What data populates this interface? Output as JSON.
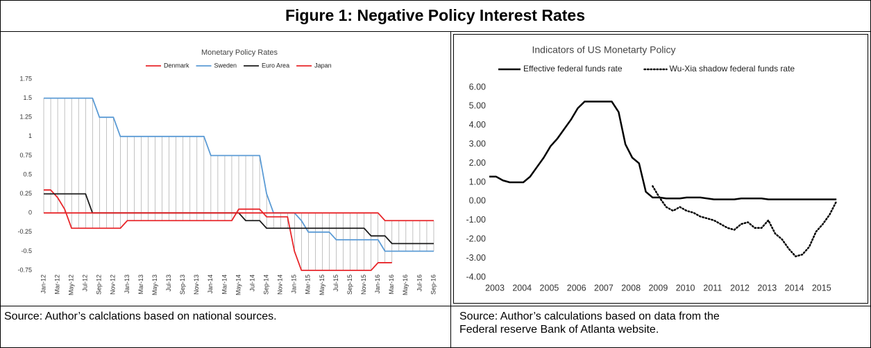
{
  "title": "Figure 1: Negative Policy Interest Rates",
  "chart_data": [
    {
      "type": "line",
      "title": "Monetary Policy Rates",
      "categories": [
        "Jan-12",
        null,
        "Mar-12",
        null,
        "May-12",
        null,
        "Jul-12",
        null,
        "Sep-12",
        null,
        "Nov-12",
        null,
        "Jan-13",
        null,
        "Mar-13",
        null,
        "May-13",
        null,
        "Jul-13",
        null,
        "Sep-13",
        null,
        "Nov-13",
        null,
        "Jan-14",
        null,
        "Mar-14",
        null,
        "May-14",
        null,
        "Jul-14",
        null,
        "Sep-14",
        null,
        "Nov-14",
        null,
        "Jan-15",
        null,
        "Mar-15",
        null,
        "May-15",
        null,
        "Jul-15",
        null,
        "Sep-15",
        null,
        "Nov-15",
        null,
        "Jan-16",
        null,
        "Mar-16",
        null,
        "May-16",
        null,
        "Jul-16",
        null,
        "Sep-16"
      ],
      "series": [
        {
          "name": "Denmark",
          "color": "#e8262a",
          "values": [
            0.3,
            0.3,
            0.2,
            0.05,
            -0.2,
            -0.2,
            -0.2,
            -0.2,
            -0.2,
            -0.2,
            -0.2,
            -0.2,
            -0.1,
            -0.1,
            -0.1,
            -0.1,
            -0.1,
            -0.1,
            -0.1,
            -0.1,
            -0.1,
            -0.1,
            -0.1,
            -0.1,
            -0.1,
            -0.1,
            -0.1,
            -0.1,
            0.05,
            0.05,
            0.05,
            0.05,
            -0.05,
            -0.05,
            -0.05,
            -0.05,
            -0.5,
            -0.75,
            -0.75,
            -0.75,
            -0.75,
            -0.75,
            -0.75,
            -0.75,
            -0.75,
            -0.75,
            -0.75,
            -0.75,
            -0.65,
            -0.65,
            -0.65,
            null,
            null,
            null,
            null,
            null,
            null
          ]
        },
        {
          "name": "Sweden",
          "color": "#5b9bd5",
          "values": [
            1.5,
            1.5,
            1.5,
            1.5,
            1.5,
            1.5,
            1.5,
            1.5,
            1.25,
            1.25,
            1.25,
            1,
            1,
            1,
            1,
            1,
            1,
            1,
            1,
            1,
            1,
            1,
            1,
            1,
            0.75,
            0.75,
            0.75,
            0.75,
            0.75,
            0.75,
            0.75,
            0.75,
            0.25,
            0,
            0,
            0,
            0,
            -0.1,
            -0.25,
            -0.25,
            -0.25,
            -0.25,
            -0.35,
            -0.35,
            -0.35,
            -0.35,
            -0.35,
            -0.35,
            -0.35,
            -0.5,
            -0.5,
            -0.5,
            -0.5,
            -0.5,
            -0.5,
            -0.5,
            -0.5
          ]
        },
        {
          "name": "Euro Area",
          "color": "#1a1a1a",
          "values": [
            0.25,
            0.25,
            0.25,
            0.25,
            0.25,
            0.25,
            0.25,
            0,
            0,
            0,
            0,
            0,
            0,
            0,
            0,
            0,
            0,
            0,
            0,
            0,
            0,
            0,
            0,
            0,
            0,
            0,
            0,
            0,
            0,
            -0.1,
            -0.1,
            -0.1,
            -0.2,
            -0.2,
            -0.2,
            -0.2,
            -0.2,
            -0.2,
            -0.2,
            -0.2,
            -0.2,
            -0.2,
            -0.2,
            -0.2,
            -0.2,
            -0.2,
            -0.2,
            -0.3,
            -0.3,
            -0.3,
            -0.4,
            -0.4,
            -0.4,
            -0.4,
            -0.4,
            -0.4,
            -0.4
          ]
        },
        {
          "name": "Japan",
          "color": "#e8262a",
          "values": [
            0,
            0,
            0,
            0,
            0,
            0,
            0,
            0,
            0,
            0,
            0,
            0,
            0,
            0,
            0,
            0,
            0,
            0,
            0,
            0,
            0,
            0,
            0,
            0,
            0,
            0,
            0,
            0,
            0,
            0,
            0,
            0,
            0,
            0,
            0,
            0,
            0,
            0,
            0,
            0,
            0,
            0,
            0,
            0,
            0,
            0,
            0,
            0,
            0,
            -0.1,
            -0.1,
            -0.1,
            -0.1,
            -0.1,
            -0.1,
            -0.1,
            -0.1
          ]
        }
      ],
      "ylim": [
        -0.75,
        1.75
      ],
      "yticks": [
        -0.75,
        -0.5,
        -0.25,
        0,
        0.25,
        0.5,
        0.75,
        1,
        1.25,
        1.5,
        1.75
      ],
      "high_low_lines": true,
      "grid": false
    },
    {
      "type": "line",
      "title": "Indicators of US Monetarty Policy",
      "x": [
        2003,
        2003.25,
        2003.5,
        2003.75,
        2004,
        2004.25,
        2004.5,
        2004.75,
        2005,
        2005.25,
        2005.5,
        2005.75,
        2006,
        2006.25,
        2006.5,
        2006.75,
        2007,
        2007.25,
        2007.5,
        2007.75,
        2008,
        2008.25,
        2008.5,
        2008.75,
        2009,
        2009.25,
        2009.5,
        2009.75,
        2010,
        2010.25,
        2010.5,
        2010.75,
        2011,
        2011.25,
        2011.5,
        2011.75,
        2012,
        2012.25,
        2012.5,
        2012.75,
        2013,
        2013.25,
        2013.5,
        2013.75,
        2014,
        2014.25,
        2014.5,
        2014.75,
        2015,
        2015.25,
        2015.5,
        2015.75
      ],
      "series": [
        {
          "name": "Effective federal funds rate",
          "color": "#000000",
          "dash": "solid",
          "values": [
            1.3,
            1.3,
            1.1,
            1.0,
            1.0,
            1.0,
            1.3,
            1.8,
            2.3,
            2.9,
            3.3,
            3.8,
            4.3,
            4.9,
            5.25,
            5.25,
            5.25,
            5.25,
            5.25,
            4.7,
            3.0,
            2.3,
            2.0,
            0.5,
            0.2,
            0.2,
            0.15,
            0.15,
            0.15,
            0.2,
            0.2,
            0.2,
            0.15,
            0.1,
            0.1,
            0.1,
            0.1,
            0.15,
            0.15,
            0.15,
            0.15,
            0.1,
            0.1,
            0.1,
            0.1,
            0.1,
            0.1,
            0.1,
            0.1,
            0.1,
            0.1,
            0.1
          ]
        },
        {
          "name": "Wu-Xia shadow federal funds rate",
          "color": "#000000",
          "dash": "dotted",
          "values": [
            null,
            null,
            null,
            null,
            null,
            null,
            null,
            null,
            null,
            null,
            null,
            null,
            null,
            null,
            null,
            null,
            null,
            null,
            null,
            null,
            null,
            null,
            null,
            null,
            0.8,
            0.2,
            -0.3,
            -0.5,
            -0.3,
            -0.5,
            -0.6,
            -0.8,
            -0.9,
            -1.0,
            -1.2,
            -1.4,
            -1.5,
            -1.2,
            -1.1,
            -1.4,
            -1.4,
            -1.0,
            -1.7,
            -2.0,
            -2.5,
            -2.9,
            -2.8,
            -2.4,
            -1.6,
            -1.2,
            -0.7,
            0.0
          ]
        }
      ],
      "xlim": [
        2003,
        2016
      ],
      "xticks": [
        2003,
        2004,
        2005,
        2006,
        2007,
        2008,
        2009,
        2010,
        2011,
        2012,
        2013,
        2014,
        2015
      ],
      "ylim": [
        -4,
        6
      ],
      "yticks": [
        {
          "value": -4,
          "label": "-4.00"
        },
        {
          "value": -3,
          "label": "-3.00"
        },
        {
          "value": -2,
          "label": "-2.00"
        },
        {
          "value": -1,
          "label": "-1.00"
        },
        {
          "value": 0,
          "label": "0.00"
        },
        {
          "value": 1,
          "label": "1.00"
        },
        {
          "value": 2,
          "label": "2.00"
        },
        {
          "value": 3,
          "label": "3.00"
        },
        {
          "value": 4,
          "label": "4.00"
        },
        {
          "value": 5,
          "label": "5.00"
        },
        {
          "value": 6,
          "label": "6.00"
        }
      ],
      "grid": false
    }
  ],
  "sources": [
    "Source: Author’s calclations based on national sources.",
    "Source: Author’s calculations based on data from the Federal reserve Bank of Atlanta website."
  ]
}
